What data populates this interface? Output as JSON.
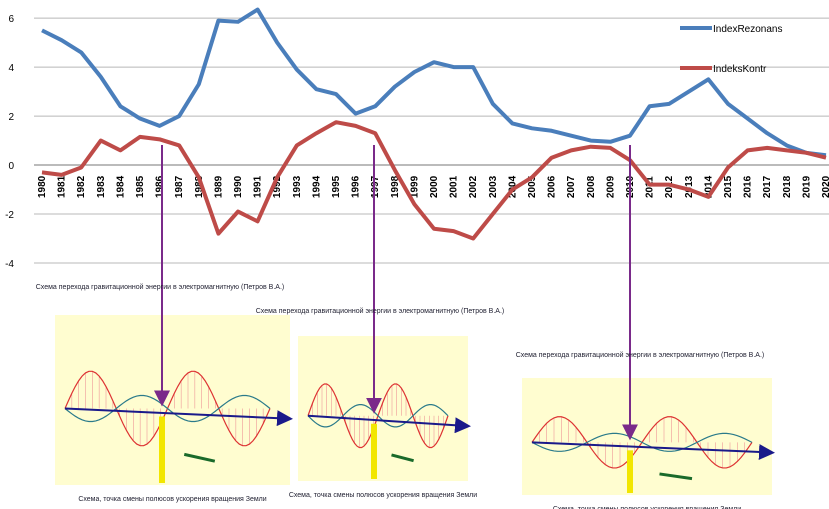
{
  "chart_data": {
    "type": "line",
    "categories": [
      "1980",
      "1981",
      "1982",
      "1983",
      "1984",
      "1985",
      "1986",
      "1987",
      "1988",
      "1989",
      "1990",
      "1991",
      "1992",
      "1993",
      "1994",
      "1995",
      "1996",
      "1997",
      "1998",
      "1999",
      "2000",
      "2001",
      "2002",
      "2003",
      "2004",
      "2005",
      "2006",
      "2007",
      "2008",
      "2009",
      "2010",
      "2011",
      "2012",
      "2013",
      "2014",
      "2015",
      "2016",
      "2017",
      "2018",
      "2019",
      "2020"
    ],
    "series": [
      {
        "name": "IndexRezonans",
        "color": "#4a7ebb",
        "values": [
          5.5,
          5.1,
          4.6,
          3.6,
          2.4,
          1.9,
          1.6,
          2.0,
          3.3,
          5.9,
          5.85,
          6.35,
          5.0,
          3.9,
          3.1,
          2.9,
          2.1,
          2.4,
          3.2,
          3.8,
          4.2,
          4.0,
          4.0,
          2.5,
          1.7,
          1.5,
          1.4,
          1.2,
          1.0,
          0.95,
          1.2,
          2.4,
          2.5,
          3.0,
          3.5,
          2.5,
          1.9,
          1.3,
          0.8,
          0.5,
          0.4
        ]
      },
      {
        "name": "IndeksKontr",
        "color": "#be4b48",
        "values": [
          -0.3,
          -0.4,
          -0.1,
          1.0,
          0.6,
          1.15,
          1.05,
          0.8,
          -0.5,
          -2.8,
          -1.9,
          -2.3,
          -0.5,
          0.8,
          1.3,
          1.75,
          1.6,
          1.3,
          -0.2,
          -1.6,
          -2.6,
          -2.7,
          -3.0,
          -2.0,
          -1.0,
          -0.5,
          0.3,
          0.6,
          0.75,
          0.7,
          0.2,
          -0.8,
          -0.8,
          -1.0,
          -1.3,
          -0.1,
          0.6,
          0.7,
          0.6,
          0.5,
          0.3
        ]
      }
    ],
    "ylim": [
      -4,
      6.7
    ],
    "yticks": [
      -4,
      -2,
      0,
      2,
      4,
      6
    ],
    "grid": true,
    "annotations": [
      {
        "title": "Схема перехода гравитационной энергии в электромагнитную (Петров В.А.)",
        "caption": "Схема, точка смены полюсов ускорения вращения Земли"
      },
      {
        "title": "Схема перехода гравитационной энергии в электромагнитную (Петров В.А.)",
        "caption": "Схема, точка смены полюсов ускорения вращения Земли"
      },
      {
        "title": "Схема перехода гравитационной энергии в электромагнитную (Петров В.А.)",
        "caption": "Схема, точка смены полюсов ускорения вращения Земли"
      }
    ]
  }
}
